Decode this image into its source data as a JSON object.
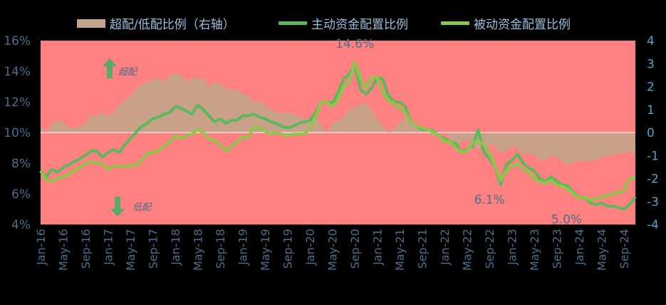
{
  "chart_data": {
    "type": "line",
    "x": [
      "Jan-16",
      "Feb-16",
      "Mar-16",
      "Apr-16",
      "May-16",
      "Jun-16",
      "Jul-16",
      "Aug-16",
      "Sep-16",
      "Oct-16",
      "Nov-16",
      "Dec-16",
      "Jan-17",
      "Feb-17",
      "Mar-17",
      "Apr-17",
      "May-17",
      "Jun-17",
      "Jul-17",
      "Aug-17",
      "Sep-17",
      "Oct-17",
      "Nov-17",
      "Dec-17",
      "Jan-18",
      "Feb-18",
      "Mar-18",
      "Apr-18",
      "May-18",
      "Jun-18",
      "Jul-18",
      "Aug-18",
      "Sep-18",
      "Oct-18",
      "Nov-18",
      "Dec-18",
      "Jan-19",
      "Feb-19",
      "Mar-19",
      "Apr-19",
      "May-19",
      "Jun-19",
      "Jul-19",
      "Aug-19",
      "Sep-19",
      "Oct-19",
      "Nov-19",
      "Dec-19",
      "Jan-20",
      "Feb-20",
      "Mar-20",
      "Apr-20",
      "May-20",
      "Jun-20",
      "Jul-20",
      "Aug-20",
      "Sep-20",
      "Oct-20",
      "Nov-20",
      "Dec-20",
      "Jan-21",
      "Feb-21",
      "Mar-21",
      "Apr-21",
      "May-21",
      "Jun-21",
      "Jul-21",
      "Aug-21",
      "Sep-21",
      "Oct-21",
      "Nov-21",
      "Dec-21",
      "Jan-22",
      "Feb-22",
      "Mar-22",
      "Apr-22",
      "May-22",
      "Jun-22",
      "Jul-22",
      "Aug-22",
      "Sep-22",
      "Oct-22",
      "Nov-22",
      "Dec-22",
      "Jan-23",
      "Feb-23",
      "Mar-23",
      "Apr-23",
      "May-23",
      "Jun-23",
      "Jul-23",
      "Aug-23",
      "Sep-23",
      "Oct-23",
      "Nov-23",
      "Dec-23",
      "Jan-24",
      "Feb-24",
      "Mar-24",
      "Apr-24",
      "May-24",
      "Jun-24",
      "Jul-24",
      "Aug-24",
      "Sep-24",
      "Oct-24",
      "Nov-24"
    ],
    "x_tick_labels": [
      "Jan-16",
      "May-16",
      "Sep-16",
      "Jan-17",
      "May-17",
      "Sep-17",
      "Jan-18",
      "May-18",
      "Sep-18",
      "Jan-19",
      "May-19",
      "Sep-19",
      "Jan-20",
      "May-20",
      "Sep-20",
      "Jan-21",
      "May-21",
      "Sep-21",
      "Jan-22",
      "May-22",
      "Sep-22",
      "Jan-23",
      "May-23",
      "Sep-23",
      "Jan-24",
      "May-24",
      "Sep-24"
    ],
    "series": [
      {
        "name": "超配/低配比例（右轴）",
        "axis": "right",
        "kind": "area",
        "color": "#c2a488",
        "values": [
          0.3,
          0.0,
          0.4,
          0.5,
          0.5,
          0.2,
          0.2,
          0.3,
          0.4,
          0.8,
          0.7,
          0.9,
          0.7,
          0.9,
          1.2,
          1.4,
          1.6,
          1.9,
          2.1,
          2.2,
          2.3,
          2.4,
          2.2,
          2.5,
          2.6,
          2.5,
          2.2,
          2.4,
          2.3,
          2.4,
          2.0,
          2.2,
          2.1,
          2.0,
          1.8,
          1.9,
          1.7,
          1.6,
          1.3,
          1.4,
          1.2,
          1.0,
          0.9,
          0.8,
          0.9,
          0.8,
          0.7,
          0.6,
          0.6,
          0.8,
          0.3,
          0.0,
          0.4,
          0.5,
          0.7,
          1.0,
          1.1,
          1.2,
          1.3,
          1.0,
          0.6,
          0.3,
          0.0,
          0.2,
          0.4,
          0.7,
          0.4,
          0.2,
          0.1,
          0.0,
          -0.2,
          -0.1,
          0.1,
          -0.3,
          -0.6,
          -0.4,
          -0.3,
          -0.6,
          -0.7,
          -0.8,
          -0.5,
          -0.6,
          -0.9,
          -0.8,
          -0.6,
          -0.7,
          -1.0,
          -0.9,
          -1.0,
          -1.2,
          -1.2,
          -1.0,
          -1.1,
          -1.3,
          -1.4,
          -1.3,
          -1.2,
          -1.3,
          -1.2,
          -1.2,
          -1.1,
          -1.0,
          -1.0,
          -0.9,
          -0.9,
          -0.8,
          -1.0
        ]
      },
      {
        "name": "主动资金配置比例",
        "axis": "left",
        "kind": "line",
        "color": "#5cb85c",
        "values": [
          7.5,
          7.1,
          7.6,
          7.4,
          7.7,
          7.9,
          8.1,
          8.3,
          8.5,
          8.8,
          8.8,
          8.4,
          8.7,
          8.9,
          8.7,
          9.2,
          9.6,
          10.0,
          10.4,
          10.6,
          10.9,
          11.0,
          11.2,
          11.3,
          11.7,
          11.6,
          11.4,
          11.2,
          11.8,
          11.5,
          11.1,
          10.7,
          10.9,
          10.6,
          10.8,
          10.8,
          11.1,
          11.1,
          11.2,
          11.0,
          10.9,
          10.7,
          10.6,
          10.4,
          10.3,
          10.4,
          10.6,
          10.7,
          10.8,
          11.3,
          12.0,
          12.0,
          11.9,
          12.6,
          13.5,
          13.8,
          14.4,
          12.8,
          12.5,
          12.9,
          13.6,
          13.5,
          12.4,
          12.0,
          12.0,
          11.7,
          10.7,
          10.4,
          10.2,
          10.2,
          10.1,
          9.8,
          9.6,
          9.4,
          9.3,
          8.7,
          8.9,
          9.1,
          10.2,
          8.7,
          8.3,
          7.8,
          6.6,
          7.9,
          8.2,
          8.6,
          8.0,
          7.7,
          7.5,
          7.0,
          6.8,
          7.1,
          6.8,
          6.6,
          6.5,
          6.1,
          5.7,
          5.8,
          5.4,
          5.3,
          5.4,
          5.2,
          5.2,
          5.1,
          5.0,
          5.3,
          5.8
        ]
      },
      {
        "name": "被动资金配置比例",
        "axis": "left",
        "kind": "line",
        "color": "#8dc64b",
        "values": [
          7.5,
          6.9,
          6.8,
          7.0,
          7.1,
          7.3,
          7.5,
          7.7,
          8.0,
          8.1,
          8.0,
          8.0,
          7.6,
          7.8,
          7.8,
          7.8,
          7.8,
          7.9,
          8.2,
          8.6,
          8.7,
          8.8,
          9.1,
          9.4,
          9.8,
          9.6,
          9.8,
          9.9,
          10.2,
          10.0,
          9.6,
          9.5,
          9.2,
          8.8,
          9.1,
          9.4,
          9.7,
          9.7,
          10.3,
          10.3,
          10.1,
          9.9,
          10.0,
          9.9,
          9.8,
          9.9,
          9.9,
          9.9,
          10.3,
          11.0,
          12.0,
          12.0,
          11.7,
          12.1,
          13.0,
          13.3,
          14.6,
          13.6,
          12.9,
          13.6,
          13.6,
          12.6,
          12.1,
          11.9,
          11.6,
          11.3,
          10.7,
          10.4,
          10.3,
          10.2,
          10.0,
          9.8,
          9.4,
          9.4,
          9.0,
          8.7,
          8.8,
          9.3,
          9.5,
          9.2,
          8.7,
          7.8,
          6.9,
          7.5,
          7.8,
          8.0,
          7.6,
          7.4,
          7.0,
          6.8,
          6.7,
          6.9,
          6.6,
          6.5,
          6.3,
          6.0,
          5.7,
          5.8,
          5.6,
          5.7,
          5.8,
          5.9,
          6.0,
          6.1,
          6.2,
          7.0,
          7.1
        ]
      }
    ],
    "y_left": {
      "min": 4,
      "max": 16,
      "step": 2,
      "format": "percent"
    },
    "y_right": {
      "min": -4,
      "max": 4,
      "step": 1
    },
    "annotations": [
      {
        "text": "14.6%",
        "x": "Sep-20",
        "y": 14.6
      },
      {
        "text": "6.1%",
        "x": "Sep-22",
        "y": 6.1
      },
      {
        "text": "5.0%",
        "x": "Nov-23",
        "y": 5.0
      },
      {
        "text": "超配",
        "arrow": "up"
      },
      {
        "text": "低配",
        "arrow": "down"
      }
    ],
    "legend_position": "top",
    "background_color": "#ff8080",
    "grid": false
  },
  "colors": {
    "plot_bg": "#ff8080",
    "axis_text": "#4a6d8a",
    "right_axis_text": "#4fa3c7",
    "arrow": "#5aa96b"
  }
}
